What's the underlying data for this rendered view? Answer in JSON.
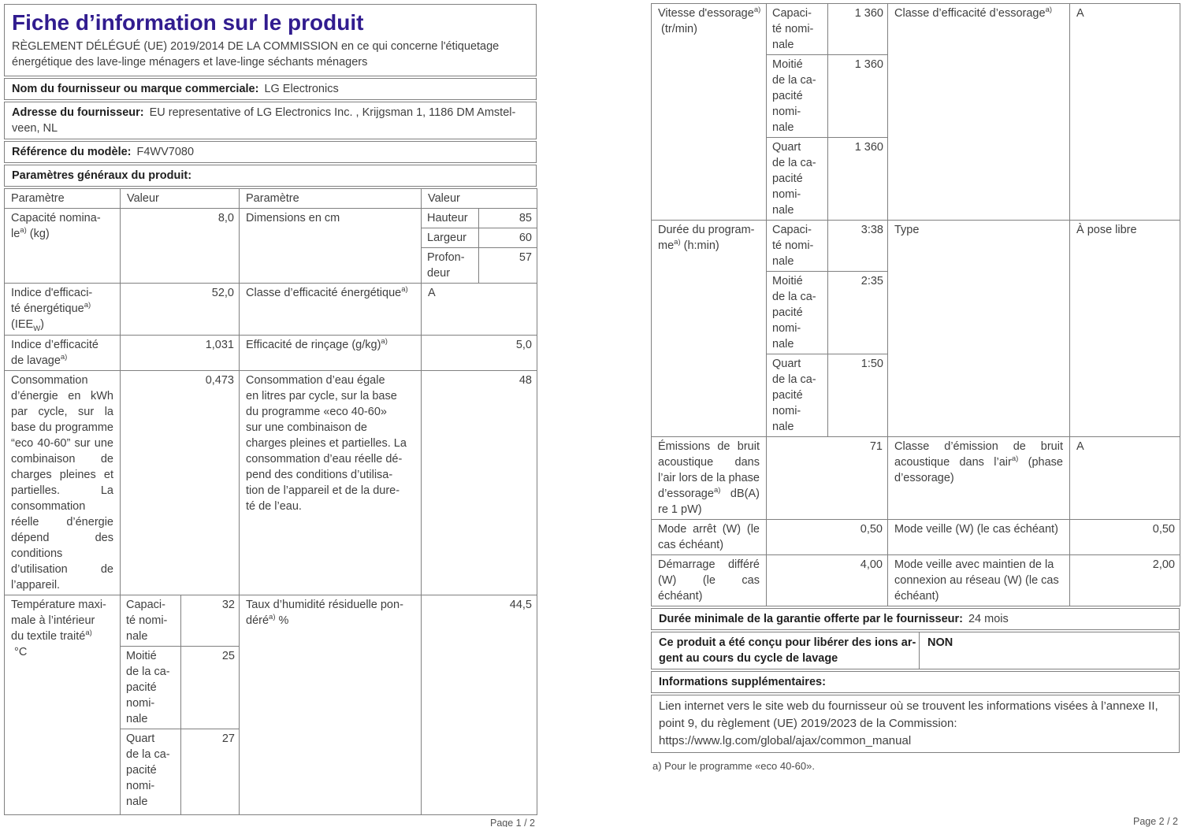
{
  "colors": {
    "title_accent": "#311c8f",
    "border": "#808080",
    "body_text": "#3f3f3f",
    "bold_text": "#1f1f1f"
  },
  "page1": {
    "title": "Fiche d’information sur le produit",
    "regulation": "RÈGLEMENT DÉLÉGUÉ (UE) 2019/2014 DE LA COMMISSION en ce qui concerne l'étiquetage\nénergétique des lave-linge ménagers et lave-linge séchants ménagers",
    "supplier": {
      "label": "Nom du fournisseur ou marque commerciale:",
      "value": "LG Electronics"
    },
    "address": {
      "label": "Adresse du fournisseur:",
      "value_line1": "EU representative of LG Electronics Inc. , Krijgsman 1, 1186 DM Amstel-",
      "value_line2": "veen, NL"
    },
    "model": {
      "label": "Référence du modèle:",
      "value": "F4WV7080"
    },
    "general_heading": "Paramètres généraux du produit:",
    "headers": [
      "Paramètre",
      "Valeur",
      "Paramètre",
      "Valeur"
    ],
    "rows": {
      "capacity": {
        "label": [
          {
            "t": "Capacité nomina-\nle"
          },
          {
            "sup": "a)"
          },
          {
            "t": " (kg)"
          }
        ],
        "value": "8,0",
        "label2": "Dimensions en cm",
        "dims": [
          {
            "k": "Hauteur",
            "v": "85"
          },
          {
            "k": "Largeur",
            "v": "60"
          },
          {
            "k": "Profon-\ndeur",
            "v": "57"
          }
        ]
      },
      "iee": {
        "label": [
          {
            "t": "Indice d'efficaci-\nté énergétique"
          },
          {
            "sup": "a)"
          },
          {
            "t": "\n(IEE"
          },
          {
            "sub": "W"
          },
          {
            "t": ")"
          }
        ],
        "value": "52,0",
        "label2": [
          {
            "t": "Classe d’efficacité énergétique"
          },
          {
            "sup": "a)"
          }
        ],
        "value2": "A"
      },
      "washing": {
        "label": [
          {
            "t": "Indice d’efficacité\nde lavage"
          },
          {
            "sup": "a)"
          }
        ],
        "value": "1,031",
        "label2": [
          {
            "t": "Efficacité de rinçage (g/kg)"
          },
          {
            "sup": "a)"
          }
        ],
        "value2": "5,0"
      },
      "energy": {
        "label": "Consommation d’énergie en kWh par cycle, sur la base du programme “eco 40-60” sur une combinaison de charges pleines et partielles. La consommation réelle d’énergie dépend des conditions d’utilisation de l’appareil.",
        "value": "0,473",
        "label2": "Consommation d’eau égale\nen litres par cycle, sur la base\ndu programme «eco 40-60»\nsur une combinaison de\ncharges pleines et partielles. La\nconsommation d’eau réelle dé-\npend des conditions d’utilisa-\ntion de l’appareil et de la dure-\nté de l’eau.",
        "value2": "48"
      },
      "temperature": {
        "label": [
          {
            "t": "Température maxi-\nmale à l’intérieur\ndu textile traité"
          },
          {
            "sup": "a)"
          },
          {
            "t": "\n °C"
          }
        ],
        "subs": [
          {
            "k": "Capaci-\nté nomi-\nnale",
            "v": "32"
          },
          {
            "k": "Moitié\nde la ca-\npacité\nnomi-\nnale",
            "v": "25"
          },
          {
            "k": "Quart\nde la ca-\npacité\nnomi-\nnale",
            "v": "27"
          }
        ],
        "label2": [
          {
            "t": "Taux d’humidité résiduelle pon-\ndéré"
          },
          {
            "sup": "a)"
          },
          {
            "t": " %"
          }
        ],
        "value2": "44,5"
      }
    },
    "footer": "Page 1 / 2"
  },
  "page2": {
    "rows": {
      "spin": {
        "label": [
          {
            "t": "Vitesse d'essorage"
          },
          {
            "sup": "a)"
          },
          {
            "t": "\n (tr/min)"
          }
        ],
        "subs": [
          {
            "k": "Capaci-\nté nomi-\nnale",
            "v": "1 360"
          },
          {
            "k": "Moitié\nde la ca-\npacité\nnomi-\nnale",
            "v": "1 360"
          },
          {
            "k": "Quart\nde la ca-\npacité\nnomi-\nnale",
            "v": "1 360"
          }
        ],
        "label2": [
          {
            "t": "Classe d’efficacité d’essorage"
          },
          {
            "sup": "a)"
          }
        ],
        "value2": "A"
      },
      "duration": {
        "label": [
          {
            "t": "Durée du program-\nme"
          },
          {
            "sup": "a)"
          },
          {
            "t": " (h:min)"
          }
        ],
        "subs": [
          {
            "k": "Capaci-\nté nomi-\nnale",
            "v": "3:38"
          },
          {
            "k": "Moitié\nde la ca-\npacité\nnomi-\nnale",
            "v": "2:35"
          },
          {
            "k": "Quart\nde la ca-\npacité\nnomi-\nnale",
            "v": "1:50"
          }
        ],
        "label2": "Type",
        "value2": "À pose libre"
      },
      "noise": {
        "label": [
          {
            "t": "Émissions de bruit acoustique dans l’air lors de la phase d’essorage"
          },
          {
            "sup": "a)"
          },
          {
            "t": " dB(A) re 1 pW)"
          }
        ],
        "value": "71",
        "label2": [
          {
            "t": "Classe d’émission de bruit acoustique dans l’air"
          },
          {
            "sup": "a)"
          },
          {
            "t": " (phase d’essorage)"
          }
        ],
        "value2": "A"
      },
      "off_mode": {
        "label": "Mode arrêt (W) (le cas échéant)",
        "value": "0,50",
        "label2": "Mode veille (W) (le cas échéant)",
        "value2": "0,50"
      },
      "delayed_start": {
        "label": "Démarrage différé (W) (le cas échéant)",
        "value": "4,00",
        "label2": "Mode veille avec maintien de la connexion au réseau (W) (le cas échéant)",
        "value2": "2,00"
      }
    },
    "warranty": {
      "label": "Durée minimale de la garantie offerte par le fournisseur:",
      "value": "24 mois"
    },
    "ions": {
      "label": "Ce produit a été conçu pour libérer des ions ar-\ngent au cours du cycle de lavage",
      "value": "NON"
    },
    "info_heading": "Informations supplémentaires:",
    "link_text": "Lien internet vers le site web du fournisseur où se trouvent les informations visées à l’annexe II, point 9, du règlement (UE) 2019/2023 de la Commission:  https://www.lg.com/global/ajax/common_manual",
    "footnote": "a) Pour le programme «eco 40-60».",
    "footer": "Page 2 / 2"
  }
}
